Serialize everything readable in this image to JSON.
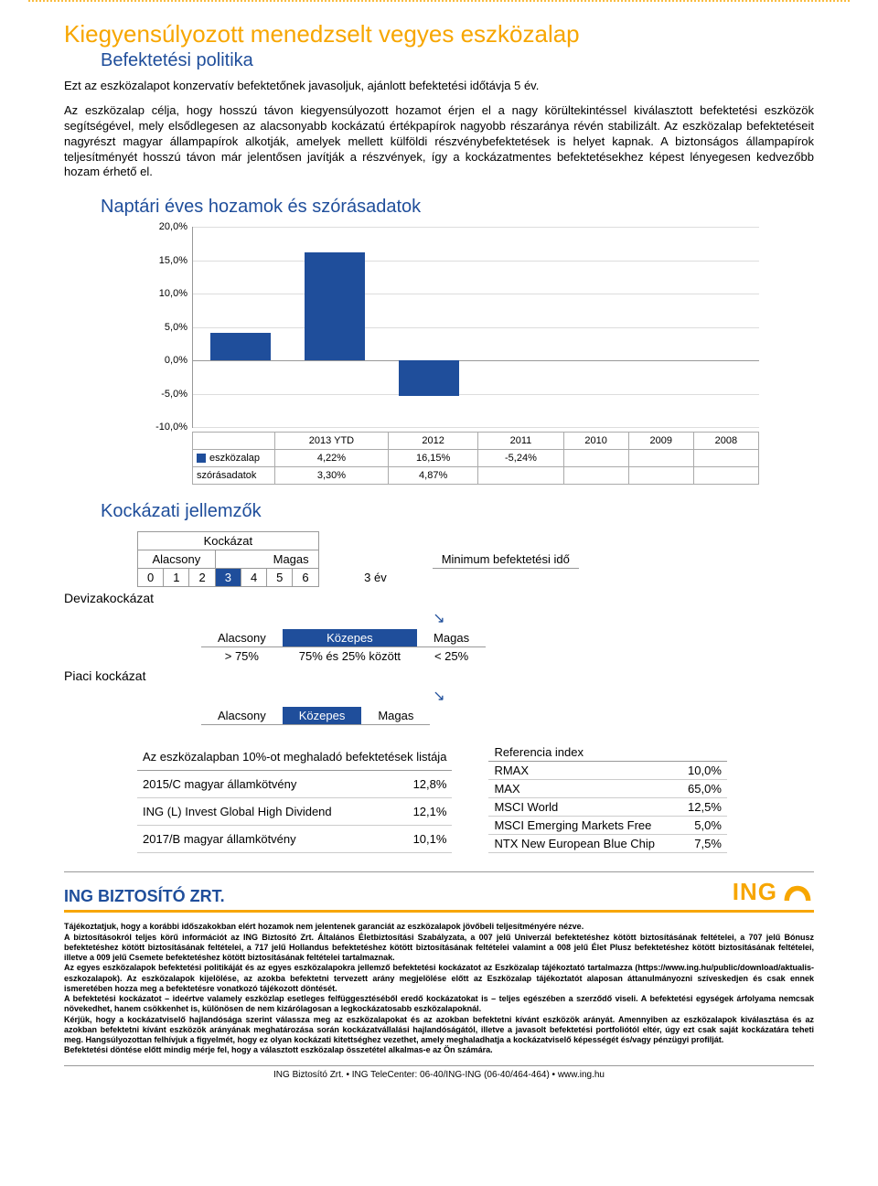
{
  "doc": {
    "title": "Kiegyensúlyozott menedzselt vegyes eszközalap",
    "subtitle": "Befektetési politika",
    "intro1": "Ezt az eszközalapot konzervatív befektetőnek javasoljuk, ajánlott befektetési időtávja 5 év.",
    "intro2": "Az eszközalap célja, hogy hosszú távon kiegyensúlyozott hozamot érjen el a nagy körültekintéssel kiválasztott befektetési eszközök segítségével, mely elsődlegesen az alacsonyabb kockázatú értékpapírok nagyobb részaránya révén stabilizált. Az eszközalap befektetéseit nagyrészt magyar állampapírok alkotják, amelyek mellett külföldi részvénybefektetések is helyet kapnak. A biztonságos állampapírok teljesítményét hosszú távon már jelentősen javítják a részvények, így a kockázatmentes befektetésekhez képest lényegesen kedvezőbb hozam érhető el.",
    "section_chart": "Naptári éves hozamok és szórásadatok",
    "section_risk": "Kockázati jellemzők"
  },
  "chart": {
    "type": "bar",
    "categories": [
      "2013 YTD",
      "2012",
      "2011",
      "2010",
      "2009",
      "2008"
    ],
    "series_name": "eszközalap",
    "stdev_name": "szórásadatok",
    "values": [
      4.22,
      16.15,
      -5.24,
      null,
      null,
      null
    ],
    "value_labels": [
      "4,22%",
      "16,15%",
      "-5,24%",
      "",
      "",
      ""
    ],
    "stdev_labels": [
      "3,30%",
      "4,87%",
      "",
      "",
      "",
      ""
    ],
    "ylim": [
      -10,
      20
    ],
    "yticks": [
      -10,
      -5,
      0,
      5,
      10,
      15,
      20
    ],
    "ytick_labels": [
      "-10,0%",
      "-5,0%",
      "0,0%",
      "5,0%",
      "10,0%",
      "15,0%",
      "20,0%"
    ],
    "bar_color": "#1f4e9b",
    "grid_color": "#dddddd",
    "axis_color": "#999999",
    "label_fontsize": 11
  },
  "risk": {
    "kockazat": "Kockázat",
    "alacsony": "Alacsony",
    "kozepes": "Közepes",
    "magas": "Magas",
    "min_idő_label": "Minimum befektetési idő",
    "min_idő_value": "3 év",
    "scale": [
      "0",
      "1",
      "2",
      "3",
      "4",
      "5",
      "6"
    ],
    "selected_index": 3,
    "devizakockazat": "Devizakockázat",
    "piaci": "Piaci kockázat",
    "levels": {
      "low": "> 75%",
      "mid": "75% és 25% között",
      "high": "< 25%"
    }
  },
  "holdings": {
    "title": "Az eszközalapban 10%-ot meghaladó befektetések listája",
    "rows": [
      {
        "name": "2015/C magyar államkötvény",
        "val": "12,8%"
      },
      {
        "name": "ING (L) Invest Global High Dividend",
        "val": "12,1%"
      },
      {
        "name": "2017/B magyar államkötvény",
        "val": "10,1%"
      }
    ]
  },
  "reference": {
    "title": "Referencia index",
    "rows": [
      {
        "name": "RMAX",
        "val": "10,0%"
      },
      {
        "name": "MAX",
        "val": "65,0%"
      },
      {
        "name": "MSCI World",
        "val": "12,5%"
      },
      {
        "name": "MSCI Emerging Markets Free",
        "val": "5,0%"
      },
      {
        "name": "NTX New European Blue Chip",
        "val": "7,5%"
      }
    ]
  },
  "brand": {
    "company": "ING BIZTOSÍTÓ ZRT.",
    "logo": "ING"
  },
  "disclaimer": {
    "p1": "Tájékoztatjuk, hogy a korábbi időszakokban elért hozamok nem jelentenek garanciát az eszközalapok jövőbeli teljesítményére nézve.",
    "p2": "A biztosításokról teljes körű információt az ING Biztosító Zrt. Általános Életbiztosítási Szabályzata, a 007 jelű Univerzál befektetéshez kötött biztosításának feltételei, a 707 jelű Bónusz befektetéshez kötött biztosításának feltételei, a 717 jelű Hollandus befektetéshez kötött biztosításának feltételei valamint a 008 jelű Élet Plusz befektetéshez kötött biztosításának feltételei, illetve a 009 jelű Csemete befektetéshez kötött biztosításának feltételei tartalmaznak.",
    "p3": "Az egyes eszközalapok befektetési politikáját és az egyes eszközalapokra jellemző befektetési kockázatot az Eszközalap tájékoztató tartalmazza (https://www.ing.hu/public/download/aktualis-eszkozalapok). Az eszközalapok kijelölése, az azokba befektetni tervezett arány megjelölése előtt az Eszközalap tájékoztatót alaposan áttanulmányozni szíveskedjen és csak ennek ismeretében hozza meg a befektetésre vonatkozó tájékozott döntését.",
    "p4": "A befektetési kockázatot – ideértve valamely eszközlap esetleges felfüggesztéséből eredő kockázatokat is – teljes egészében a szerződő viseli. A befektetési egységek árfolyama nemcsak növekedhet, hanem csökkenhet is, különösen de nem kizárólagosan a legkockázatosabb eszközalapoknál.",
    "p5": "Kérjük, hogy a kockázatviselő hajlandósága szerint válassza meg az eszközalapokat és az azokban befektetni kívánt eszközök arányát. Amennyiben az eszközalapok kiválasztása és az azokban befektetni kívánt eszközök arányának meghatározása során kockázatvállalási hajlandóságától, illetve a javasolt befektetési portfoliótól eltér, úgy ezt csak saját kockázatára teheti meg. Hangsúlyozottan felhívjuk a figyelmét, hogy ez olyan kockázati kitettséghez vezethet, amely meghaladhatja a kockázatviselő képességét és/vagy pénzügyi profilját.",
    "p6": "Befektetési döntése előtt mindig mérje fel, hogy a választott eszközalap összetétel alkalmas-e az Ön számára."
  },
  "footer": "ING Biztosító Zrt. • ING TeleCenter: 06-40/ING-ING (06-40/464-464) • www.ing.hu"
}
